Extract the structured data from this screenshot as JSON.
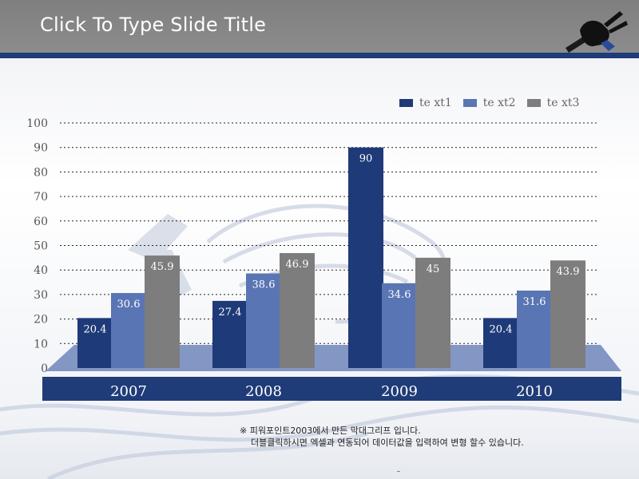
{
  "slide": {
    "title": "Click To Type Slide Title",
    "note_line1": "※ 피워포인트2003에서 만든 막대그리프 입니다.",
    "note_line2": "더블클릭하시면 엑셀과 연동되어 데이터값을 입력하여 변형 할수 있습니다."
  },
  "chart_data": {
    "type": "bar",
    "categories": [
      "2007",
      "2008",
      "2009",
      "2010"
    ],
    "series": [
      {
        "name": "te xt1",
        "values": [
          20.4,
          27.4,
          90,
          20.4
        ],
        "color": "#1f3a78"
      },
      {
        "name": "te xt2",
        "values": [
          30.6,
          38.6,
          34.6,
          31.6
        ],
        "color": "#5a75b4"
      },
      {
        "name": "te xt3",
        "values": [
          45.9,
          46.9,
          45,
          43.9
        ],
        "color": "#7d7d7d"
      }
    ],
    "value_labels": [
      [
        "20.4",
        "27.4",
        "90",
        "20.4"
      ],
      [
        "30.6",
        "38.6",
        "34.6",
        "31.6"
      ],
      [
        "45.9",
        "46.9",
        "45",
        "43.9"
      ]
    ],
    "ylim": [
      0,
      100
    ],
    "yticks": [
      "0",
      "10",
      "20",
      "30",
      "40",
      "50",
      "60",
      "70",
      "80",
      "90",
      "100"
    ],
    "grid": true,
    "legend_position": "top-right",
    "floor_color": "#6f86bb",
    "base_band_color": "#1f3c78"
  },
  "header": {
    "bg_color": "#808080",
    "bar_color": "#1f3c78",
    "plug_icon": "power-plug-icon"
  }
}
